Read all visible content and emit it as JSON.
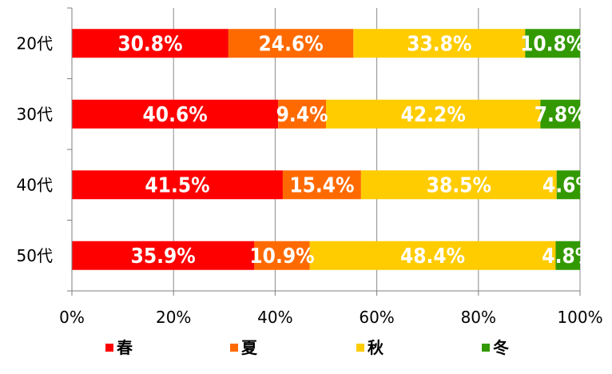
{
  "chart_data": {
    "type": "bar",
    "orientation": "horizontal-stacked-100",
    "categories": [
      "20代",
      "30代",
      "40代",
      "50代"
    ],
    "series": [
      {
        "name": "春",
        "color": "#FF0000",
        "values": [
          30.8,
          40.6,
          41.5,
          35.9
        ],
        "labels": [
          "30.8%",
          "40.6%",
          "41.5%",
          "35.9%"
        ]
      },
      {
        "name": "夏",
        "color": "#FF6A00",
        "values": [
          24.6,
          9.4,
          15.4,
          10.9
        ],
        "labels": [
          "24.6%",
          "9.4%",
          "15.4%",
          "10.9%"
        ]
      },
      {
        "name": "秋",
        "color": "#FFCC00",
        "values": [
          33.8,
          42.2,
          38.5,
          48.4
        ],
        "labels": [
          "33.8%",
          "42.2%",
          "38.5%",
          "48.4%"
        ]
      },
      {
        "name": "冬",
        "color": "#339900",
        "values": [
          10.8,
          7.8,
          4.6,
          4.8
        ],
        "labels": [
          "10.8%",
          "7.8%",
          "4.6%",
          "4.8%"
        ]
      }
    ],
    "xticks": [
      "0%",
      "20%",
      "40%",
      "60%",
      "80%",
      "100%"
    ],
    "xlim": [
      0,
      100
    ],
    "grid": "vertical",
    "legend": "bottom",
    "title": "",
    "xlabel": "",
    "ylabel": ""
  }
}
